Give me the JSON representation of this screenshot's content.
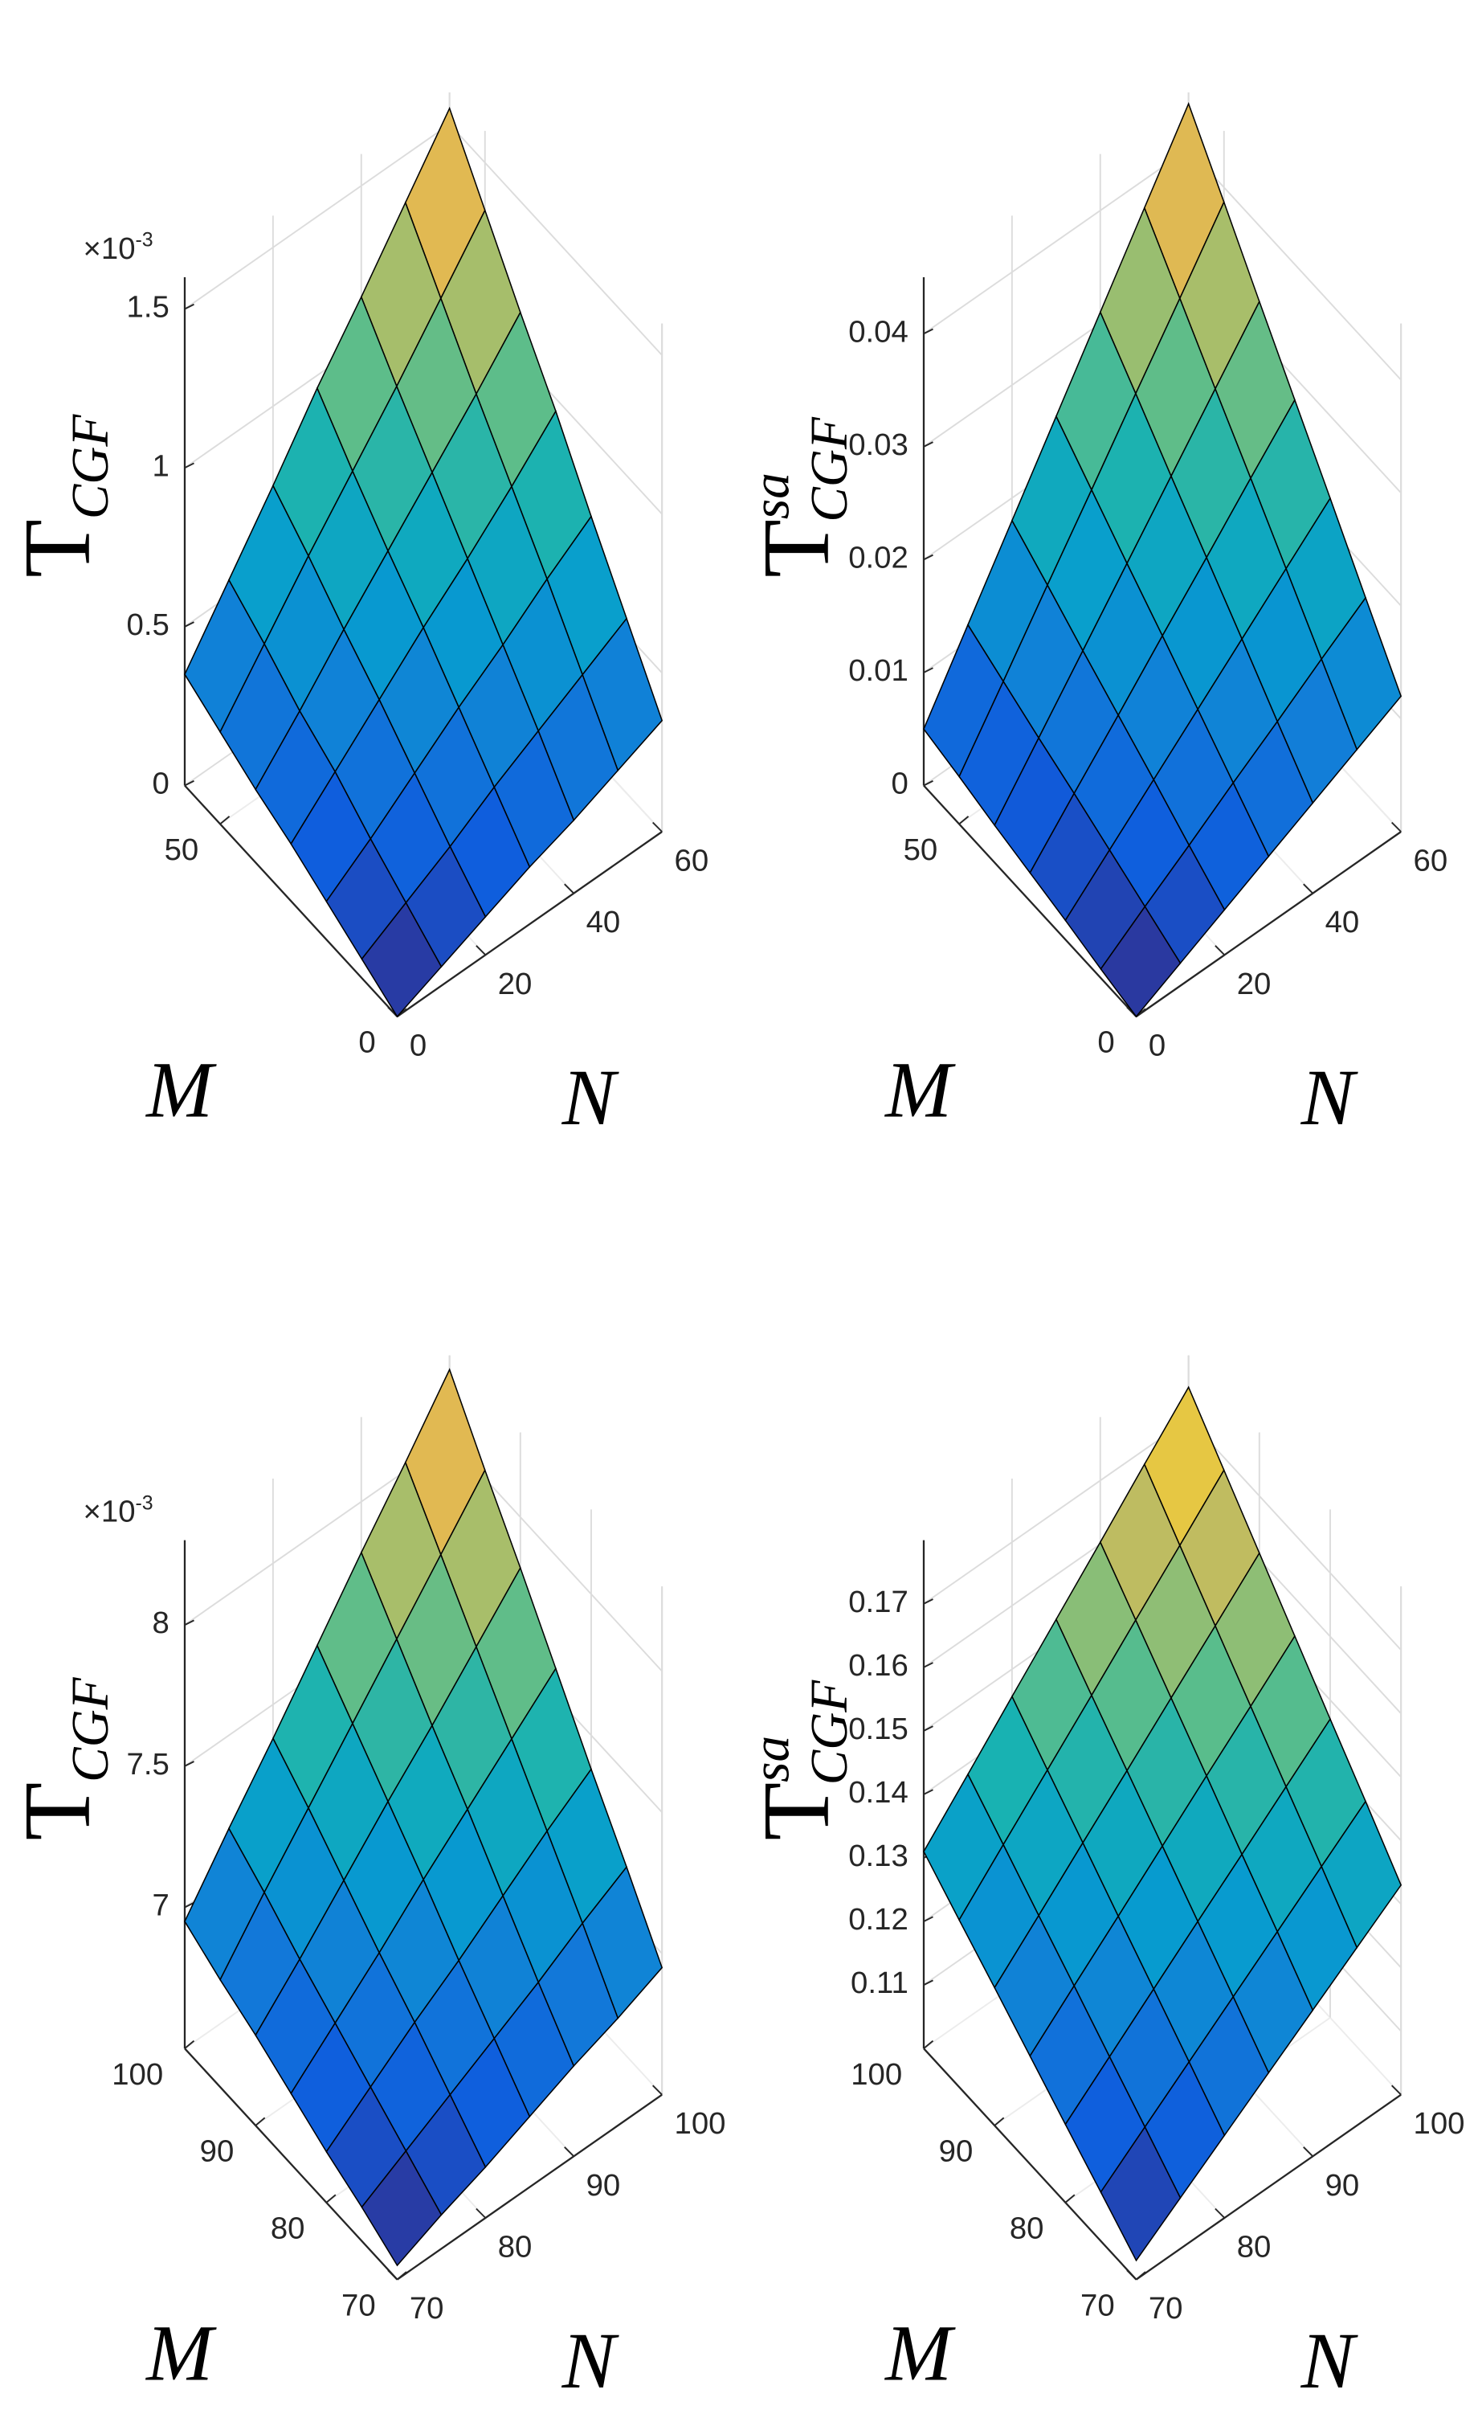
{
  "chart_data": [
    {
      "type": "surface",
      "xlabel": "N",
      "ylabel": "M",
      "zlabel": {
        "base": "T",
        "sub": "CGF"
      },
      "exponent": {
        "base": "×10",
        "power": "-3"
      },
      "x": [
        0,
        10,
        20,
        30,
        40,
        50,
        60
      ],
      "y": [
        0,
        10,
        20,
        30,
        40,
        50,
        60
      ],
      "z": [
        [
          0,
          0.06,
          0.12,
          0.18,
          0.23,
          0.29,
          0.35
        ],
        [
          0.06,
          0.14,
          0.22,
          0.31,
          0.39,
          0.47,
          0.55
        ],
        [
          0.12,
          0.22,
          0.33,
          0.44,
          0.54,
          0.65,
          0.75
        ],
        [
          0.18,
          0.31,
          0.44,
          0.57,
          0.69,
          0.82,
          0.96
        ],
        [
          0.23,
          0.38,
          0.54,
          0.69,
          0.84,
          0.99,
          1.15
        ],
        [
          0.29,
          0.47,
          0.65,
          0.82,
          0.99,
          1.17,
          1.35
        ],
        [
          0.35,
          0.55,
          0.75,
          0.96,
          1.15,
          1.35,
          1.55
        ]
      ],
      "xlim": [
        0,
        60
      ],
      "ylim": [
        0,
        60
      ],
      "zlim": [
        0,
        1.6
      ],
      "xticks": [
        0,
        20,
        40,
        60
      ],
      "yticks": [
        0,
        50
      ],
      "zticks": [
        0,
        0.5,
        1,
        1.5
      ]
    },
    {
      "type": "surface",
      "xlabel": "N",
      "ylabel": "M",
      "zlabel": {
        "base": "T",
        "sub": "CGF",
        "sup": "sa"
      },
      "x": [
        0,
        10,
        20,
        30,
        40,
        50,
        60
      ],
      "y": [
        0,
        10,
        20,
        30,
        40,
        50,
        60
      ],
      "z": [
        [
          0,
          0.002,
          0.004,
          0.006,
          0.008,
          0.01,
          0.012
        ],
        [
          0.0008,
          0.0036,
          0.0063,
          0.0091,
          0.0118,
          0.0146,
          0.0173
        ],
        [
          0.0017,
          0.0052,
          0.0087,
          0.0122,
          0.0157,
          0.0192,
          0.0227
        ],
        [
          0.0025,
          0.0068,
          0.011,
          0.0153,
          0.0195,
          0.0238,
          0.028
        ],
        [
          0.0033,
          0.0083,
          0.0133,
          0.0183,
          0.0233,
          0.0283,
          0.0333
        ],
        [
          0.0042,
          0.0099,
          0.0157,
          0.0214,
          0.0272,
          0.0329,
          0.0387
        ],
        [
          0.005,
          0.0115,
          0.018,
          0.0245,
          0.031,
          0.0375,
          0.044
        ]
      ],
      "xlim": [
        0,
        60
      ],
      "ylim": [
        0,
        60
      ],
      "zlim": [
        0,
        0.045
      ],
      "xticks": [
        0,
        20,
        40,
        60
      ],
      "yticks": [
        0,
        50
      ],
      "zticks": [
        0,
        0.01,
        0.02,
        0.03,
        0.04
      ]
    },
    {
      "type": "surface",
      "xlabel": "N",
      "ylabel": "M",
      "zlabel": {
        "base": "T",
        "sub": "CGF"
      },
      "exponent": {
        "base": "×10",
        "power": "-3"
      },
      "x": [
        70,
        75,
        80,
        85,
        90,
        95,
        100
      ],
      "y": [
        70,
        75,
        80,
        85,
        90,
        95,
        100
      ],
      "z": [
        [
          6.55,
          6.62,
          6.68,
          6.75,
          6.82,
          6.88,
          6.95
        ],
        [
          6.62,
          6.71,
          6.8,
          6.89,
          6.98,
          7.08,
          7.17
        ],
        [
          6.68,
          6.8,
          6.92,
          7.03,
          7.15,
          7.27,
          7.38
        ],
        [
          6.75,
          6.89,
          7.03,
          7.18,
          7.32,
          7.46,
          7.6
        ],
        [
          6.82,
          6.98,
          7.15,
          7.32,
          7.48,
          7.65,
          7.82
        ],
        [
          6.88,
          7.08,
          7.27,
          7.46,
          7.65,
          7.84,
          8.03
        ],
        [
          6.95,
          7.17,
          7.38,
          7.6,
          7.82,
          8.03,
          8.25
        ]
      ],
      "xlim": [
        70,
        100
      ],
      "ylim": [
        70,
        100
      ],
      "zlim": [
        6.5,
        8.3
      ],
      "xticks": [
        70,
        80,
        90,
        100
      ],
      "yticks": [
        70,
        80,
        90,
        100
      ],
      "zticks": [
        7,
        7.5,
        8
      ]
    },
    {
      "type": "surface",
      "xlabel": "N",
      "ylabel": "M",
      "zlabel": {
        "base": "T",
        "sub": "CGF",
        "sup": "sa"
      },
      "x": [
        70,
        75,
        80,
        85,
        90,
        95,
        100
      ],
      "y": [
        70,
        75,
        80,
        85,
        90,
        95,
        100
      ],
      "z": [
        [
          0.103,
          0.108,
          0.113,
          0.118,
          0.123,
          0.128,
          0.133
        ],
        [
          0.1077,
          0.1131,
          0.1185,
          0.1239,
          0.1293,
          0.1347,
          0.1401
        ],
        [
          0.1123,
          0.1181,
          0.1239,
          0.1297,
          0.1354,
          0.1412,
          0.147
        ],
        [
          0.117,
          0.1232,
          0.1293,
          0.1355,
          0.1417,
          0.1478,
          0.154
        ],
        [
          0.1217,
          0.1282,
          0.1348,
          0.1413,
          0.1479,
          0.1544,
          0.161
        ],
        [
          0.1263,
          0.1333,
          0.1402,
          0.1471,
          0.1541,
          0.161,
          0.168
        ],
        [
          0.131,
          0.1383,
          0.1457,
          0.153,
          0.1603,
          0.1677,
          0.175
        ]
      ],
      "xlim": [
        70,
        100
      ],
      "ylim": [
        70,
        100
      ],
      "zlim": [
        0.1,
        0.18
      ],
      "xticks": [
        70,
        80,
        90,
        100
      ],
      "yticks": [
        70,
        80,
        90,
        100
      ],
      "zticks": [
        0.11,
        0.12,
        0.13,
        0.14,
        0.15,
        0.16,
        0.17
      ]
    }
  ]
}
